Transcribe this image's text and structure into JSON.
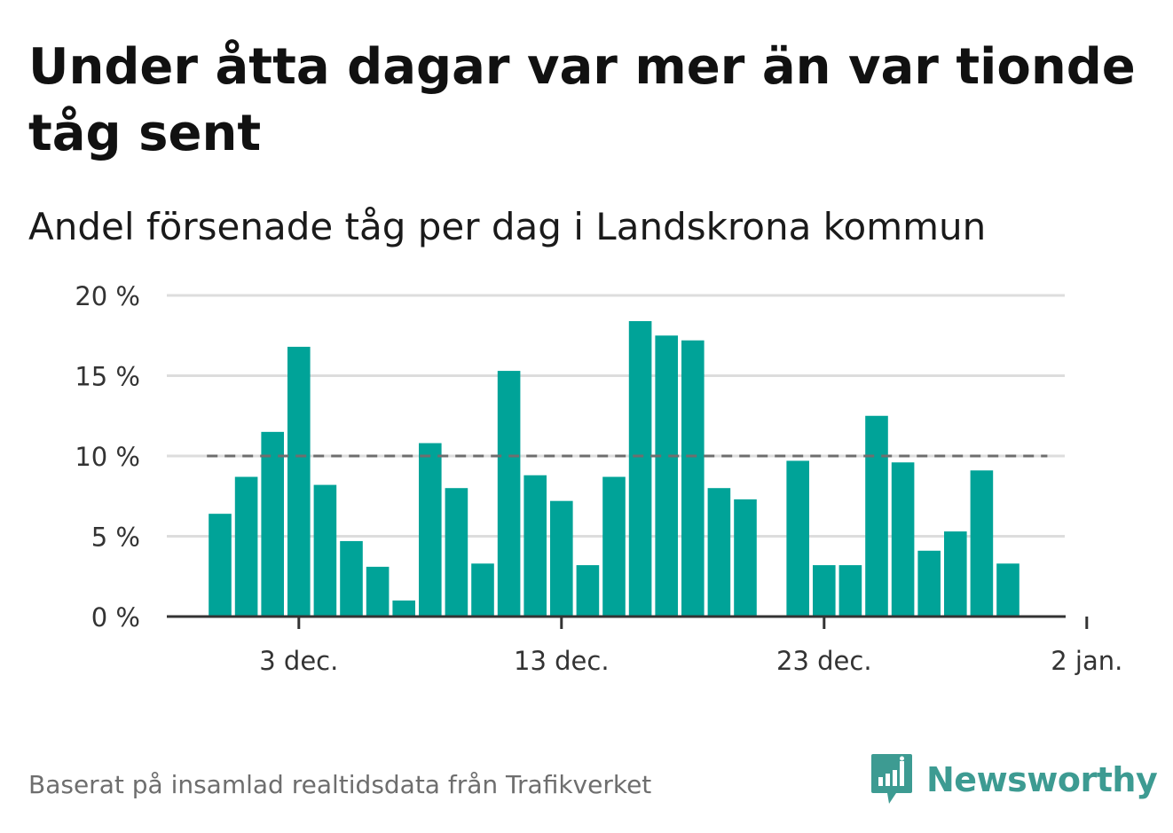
{
  "title": "Under åtta dagar var mer än var tionde tåg sent",
  "subtitle": "Andel försenade tåg per dag i Landskrona kommun",
  "source": "Baserat på insamlad realtidsdata från Trafikverket",
  "brand": {
    "name": "Newsworthy",
    "icon": "newsworthy-logo-icon",
    "color": "#3d9b92"
  },
  "colors": {
    "bar": "#00a398",
    "reference_line": "#6e6e6e",
    "grid": "#dddddd",
    "axis": "#333333"
  },
  "chart_data": {
    "type": "bar",
    "title": "Andel försenade tåg per dag i Landskrona kommun",
    "xlabel": "",
    "ylabel": "",
    "x_axis_type": "date",
    "x": [
      "2023-11-30",
      "2023-12-01",
      "2023-12-02",
      "2023-12-03",
      "2023-12-04",
      "2023-12-05",
      "2023-12-06",
      "2023-12-07",
      "2023-12-08",
      "2023-12-09",
      "2023-12-10",
      "2023-12-11",
      "2023-12-12",
      "2023-12-13",
      "2023-12-14",
      "2023-12-15",
      "2023-12-16",
      "2023-12-17",
      "2023-12-18",
      "2023-12-19",
      "2023-12-20",
      "2023-12-21",
      "2023-12-22",
      "2023-12-23",
      "2023-12-24",
      "2023-12-25",
      "2023-12-26",
      "2023-12-27",
      "2023-12-28",
      "2023-12-29",
      "2023-12-30",
      "2023-12-31",
      "2024-01-01"
    ],
    "values": [
      6.4,
      8.7,
      11.5,
      16.8,
      8.2,
      4.7,
      3.1,
      1.0,
      10.8,
      8.0,
      3.3,
      15.3,
      8.8,
      7.2,
      3.2,
      8.7,
      18.4,
      17.5,
      17.2,
      8.0,
      7.3,
      null,
      9.7,
      3.2,
      3.2,
      12.5,
      9.6,
      4.1,
      5.3,
      9.1,
      3.3,
      null,
      null
    ],
    "ylim": [
      0,
      20
    ],
    "yticks": [
      0,
      5,
      10,
      15,
      20
    ],
    "ytick_labels": [
      "0 %",
      "5 %",
      "10 %",
      "15 %",
      "20 %"
    ],
    "xticks": [
      "2023-12-03",
      "2023-12-13",
      "2023-12-23",
      "2024-01-02"
    ],
    "xtick_labels": [
      "3 dec.",
      "13 dec.",
      "23 dec.",
      "2 jan."
    ],
    "reference_line": {
      "value": 10,
      "style": "dashed",
      "from": "2023-11-30",
      "to": "2023-12-31"
    },
    "grid": true,
    "legend": "none"
  }
}
